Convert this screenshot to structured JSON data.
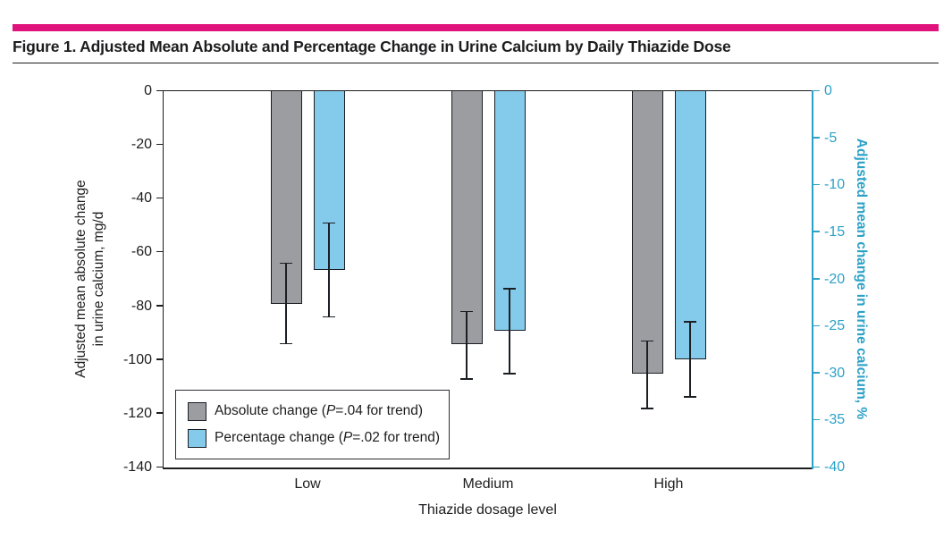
{
  "figure": {
    "title": "Figure 1. Adjusted Mean Absolute and Percentage Change in Urine Calcium by Daily Thiazide Dose",
    "accent_color": "#E0127C"
  },
  "chart_data": {
    "type": "bar",
    "categories": [
      "Low",
      "Medium",
      "High"
    ],
    "series": [
      {
        "name": "Absolute change",
        "legend_label_parts": [
          "Absolute change (",
          "P",
          "=.04 for trend)"
        ],
        "axis": "left",
        "color": "#9B9DA0",
        "values": [
          -79,
          -94,
          -105
        ],
        "error_bars": [
          [
            -64,
            -94
          ],
          [
            -82,
            -107
          ],
          [
            -93,
            -118
          ]
        ]
      },
      {
        "name": "Percentage change",
        "legend_label_parts": [
          "Percentage change (",
          "P",
          "=.02 for trend)"
        ],
        "axis": "right",
        "color": "#84CBEB",
        "values": [
          -19,
          -25.5,
          -28.5
        ],
        "error_bars": [
          [
            -14,
            -24
          ],
          [
            -21,
            -30
          ],
          [
            -24.5,
            -32.5
          ]
        ]
      }
    ],
    "left_axis": {
      "label_line1": "Adjusted mean absolute change",
      "label_line2": "in urine calcium, mg/d",
      "min": -140,
      "max": 0,
      "tick_step": 20,
      "ticks": [
        0,
        -20,
        -40,
        -60,
        -80,
        -100,
        -120,
        -140
      ],
      "color": "#1d1d1f"
    },
    "right_axis": {
      "label": "Adjusted mean change in urine calcium, %",
      "min": -40,
      "max": 0,
      "tick_step": 5,
      "ticks": [
        0,
        -5,
        -10,
        -15,
        -20,
        -25,
        -30,
        -35,
        -40
      ],
      "color": "#2BA1C7"
    },
    "xlabel": "Thiazide dosage level",
    "legend_position": "inside-bottom-left",
    "grid": false
  }
}
